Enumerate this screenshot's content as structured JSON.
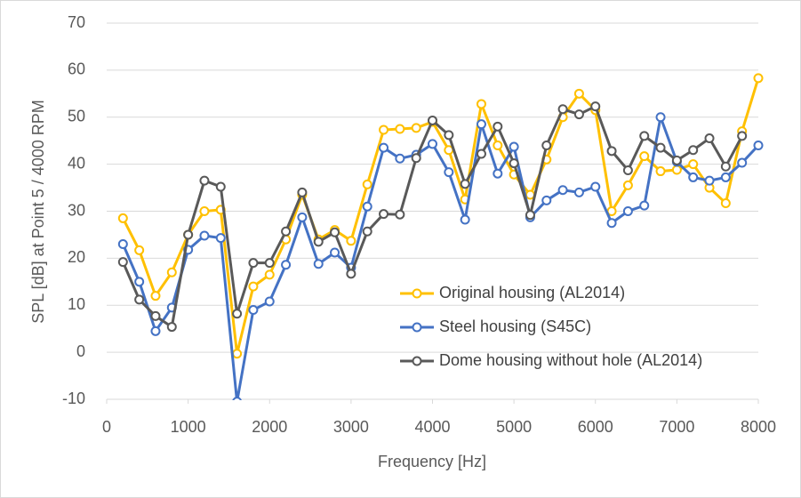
{
  "chart_data": {
    "type": "line",
    "x_label": "Frequency [Hz]",
    "y_label": "SPL [dB] at Point 5 / 4000 RPM",
    "x": [
      200,
      400,
      600,
      800,
      1000,
      1200,
      1400,
      1600,
      1800,
      2000,
      2200,
      2400,
      2600,
      2800,
      3000,
      3200,
      3400,
      3600,
      3800,
      4000,
      4200,
      4400,
      4600,
      4800,
      5000,
      5200,
      5400,
      5600,
      5800,
      6000,
      6200,
      6400,
      6600,
      6800,
      7000,
      7200,
      7400,
      7600,
      7800,
      8000
    ],
    "series": [
      {
        "name": "Original housing (AL2014)",
        "color": "#ffc000",
        "values": [
          28.5,
          21.7,
          12,
          17,
          25,
          30,
          30.3,
          -0.3,
          14,
          16.5,
          24,
          33.5,
          24,
          26,
          23.7,
          35.7,
          47.3,
          47.5,
          47.7,
          49,
          43,
          32.5,
          52.8,
          44,
          37.8,
          33.5,
          41,
          50,
          55,
          51.5,
          30,
          35.5,
          41.7,
          38.5,
          38.8,
          40,
          35,
          31.7,
          47,
          58.3
        ]
      },
      {
        "name": "Steel housing (S45C)",
        "color": "#4472c4",
        "values": [
          23,
          15,
          4.5,
          9.5,
          21.8,
          24.8,
          24.3,
          -10.5,
          9,
          10.8,
          18.6,
          28.7,
          18.8,
          21.2,
          18,
          31,
          43.5,
          41.2,
          42,
          44.3,
          38.3,
          28.2,
          48.5,
          38,
          43.7,
          28.7,
          32.3,
          34.5,
          34,
          35.2,
          27.5,
          30,
          31.2,
          50,
          40.5,
          37.2,
          36.5,
          37.2,
          40.3,
          44
        ]
      },
      {
        "name": "Dome housing without hole (AL2014)",
        "color": "#595959",
        "values": [
          19.2,
          11.2,
          7.7,
          5.4,
          25,
          36.5,
          35.2,
          8.2,
          19,
          19,
          25.7,
          34,
          23.5,
          25.5,
          16.7,
          25.7,
          29.4,
          29.3,
          41.3,
          49.3,
          46.2,
          35.8,
          42.2,
          48,
          40.2,
          29.2,
          44,
          51.7,
          50.6,
          52.3,
          42.8,
          38.7,
          46,
          43.5,
          40.8,
          43,
          45.5,
          39.5,
          46,
          null
        ]
      }
    ],
    "xlim": [
      0,
      8000
    ],
    "xticks": [
      0,
      1000,
      2000,
      3000,
      4000,
      5000,
      6000,
      7000,
      8000
    ],
    "ylim": [
      -10,
      70
    ],
    "yticks": [
      -10,
      0,
      10,
      20,
      30,
      40,
      50,
      60,
      70
    ],
    "grid": true,
    "legend": "lower right"
  }
}
